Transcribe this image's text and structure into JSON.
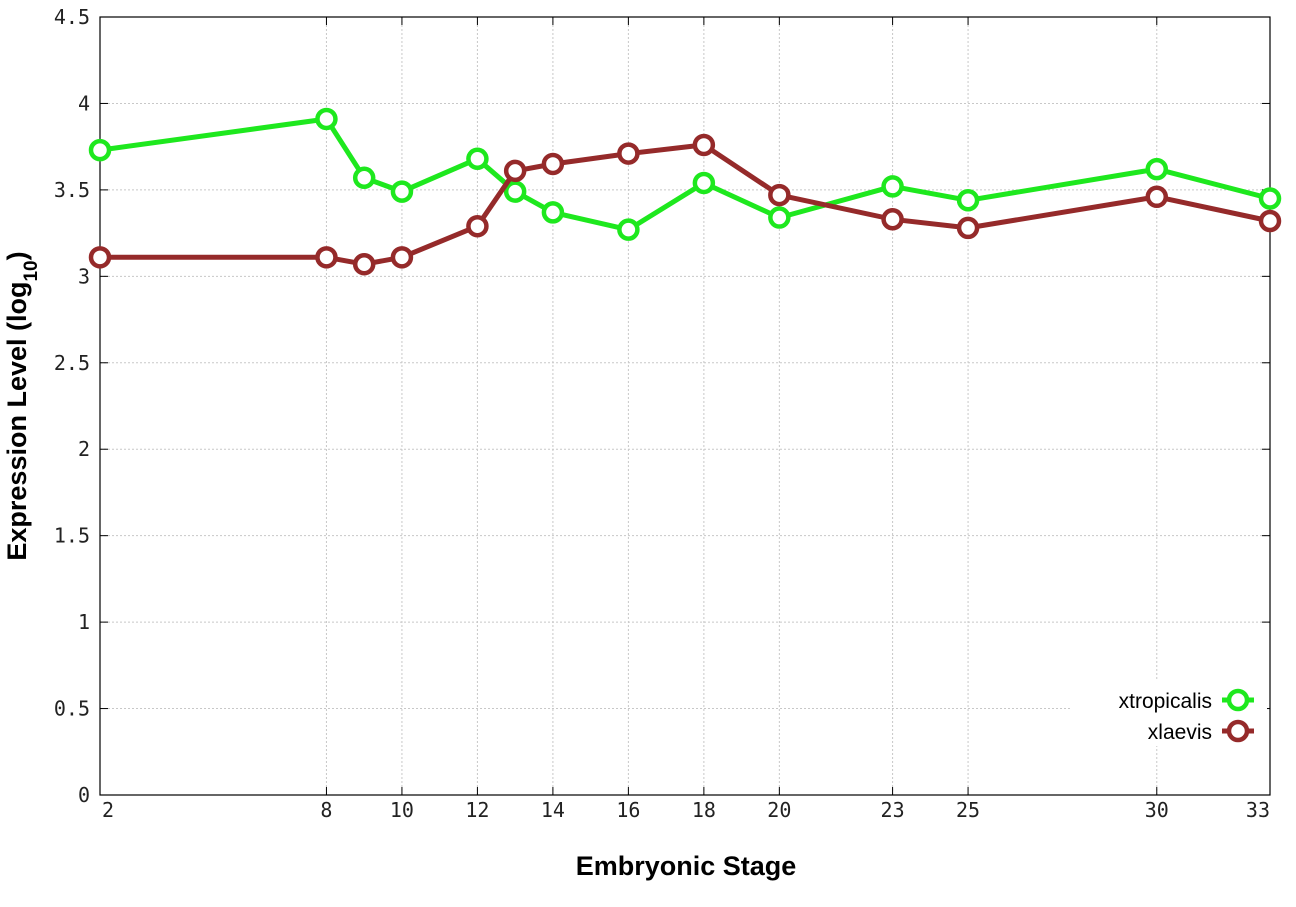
{
  "chart_data": {
    "type": "line",
    "title": "",
    "xlabel": "Embryonic Stage",
    "ylabel_main": "Expression Level (log",
    "ylabel_sub": "10",
    "ylabel_close": ")",
    "x": [
      2,
      8,
      9,
      10,
      12,
      13,
      14,
      16,
      18,
      20,
      23,
      25,
      30,
      33
    ],
    "xticks": [
      2,
      8,
      10,
      12,
      14,
      16,
      18,
      20,
      23,
      25,
      30,
      33
    ],
    "xtick_labels": [
      "2",
      "8",
      "10",
      "12",
      "14",
      "16",
      "18",
      "20",
      "23",
      "25",
      "30",
      "33"
    ],
    "xlim": [
      2,
      33
    ],
    "yticks": [
      0,
      0.5,
      1,
      1.5,
      2,
      2.5,
      3,
      3.5,
      4,
      4.5
    ],
    "ytick_labels": [
      "0",
      "0.5",
      "1",
      "1.5",
      "2",
      "2.5",
      "3",
      "3.5",
      "4",
      "4.5"
    ],
    "ylim": [
      0,
      4.5
    ],
    "grid": true,
    "legend_position": "bottom-right",
    "series": [
      {
        "name": "xtropicalis",
        "color": "#1ee81e",
        "values": [
          3.73,
          3.91,
          3.57,
          3.49,
          3.68,
          3.49,
          3.37,
          3.27,
          3.54,
          3.34,
          3.52,
          3.44,
          3.62,
          3.45
        ]
      },
      {
        "name": "xlaevis",
        "color": "#952a2a",
        "values": [
          3.11,
          3.11,
          3.07,
          3.11,
          3.29,
          3.61,
          3.65,
          3.71,
          3.76,
          3.47,
          3.33,
          3.28,
          3.46,
          3.32
        ]
      }
    ]
  }
}
